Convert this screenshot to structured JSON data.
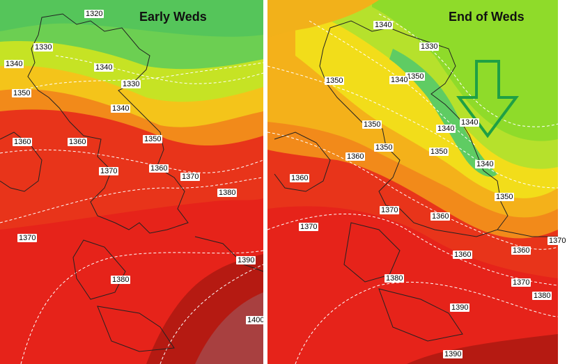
{
  "left_panel": {
    "title": "Early Weds",
    "labels": [
      "1320",
      "1330",
      "1340",
      "1340",
      "1330",
      "1350",
      "1340",
      "1360",
      "1360",
      "1350",
      "1370",
      "1360",
      "1370",
      "1380",
      "1370",
      "1390",
      "1380",
      "1400"
    ]
  },
  "right_panel": {
    "title": "End of Weds",
    "labels": [
      "1340",
      "1330",
      "1350",
      "1340",
      "1350",
      "1350",
      "1340",
      "1340",
      "1350",
      "1350",
      "1360",
      "1340",
      "1360",
      "1350",
      "1370",
      "1360",
      "1370",
      "1360",
      "1360",
      "1370",
      "1370",
      "1380",
      "1380",
      "1390",
      "1390"
    ]
  },
  "colors": {
    "arrow": "#1fa045",
    "dark_red": "#a51d12",
    "red": "#e8291a",
    "orange": "#f26a1a",
    "yellow": "#f2e31a",
    "green": "#5bcc5a"
  }
}
